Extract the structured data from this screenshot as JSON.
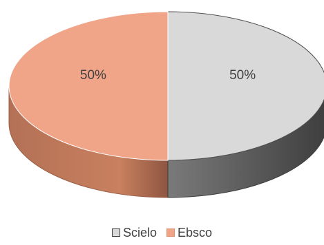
{
  "chart_data": {
    "type": "pie",
    "style": "3d",
    "title": "",
    "labels": [
      "Scielo",
      "Ebsco"
    ],
    "values": [
      50,
      50
    ],
    "value_labels": [
      "50%",
      "50%"
    ],
    "colors": {
      "Scielo": "#d9d9d9",
      "Ebsco": "#f0a488"
    },
    "legend": {
      "placement": "bottom",
      "entries": [
        {
          "label": "Scielo",
          "color": "#d9d9d9"
        },
        {
          "label": "Ebsco",
          "color": "#f0a488"
        }
      ]
    }
  }
}
